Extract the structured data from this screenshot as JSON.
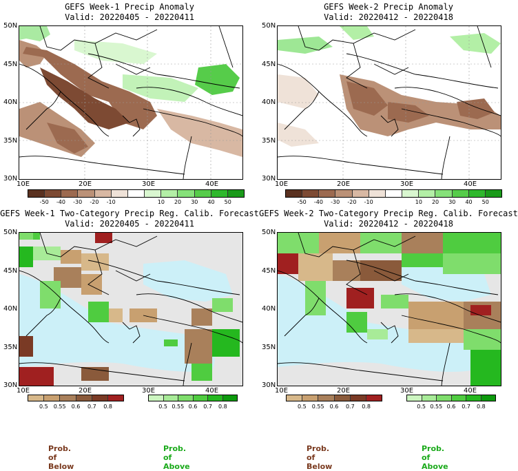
{
  "panels": {
    "p1": {
      "title": "GEFS Week-1 Precip Anomaly",
      "valid": "Valid: 20220405 - 20220411"
    },
    "p2": {
      "title": "GEFS Week-2 Precip Anomaly",
      "valid": "Valid: 20220412 - 20220418"
    },
    "p3": {
      "title": "GEFS Week-1 Two-Category Precip Reg. Calib. Forecast",
      "valid": "Valid: 20220405 - 20220411"
    },
    "p4": {
      "title": "GEFS Week-2 Two-Category Precip Reg. Calib. Forecast",
      "valid": "Valid: 20220412 - 20220418"
    }
  },
  "lat_labels": [
    "50N",
    "45N",
    "40N",
    "35N",
    "30N"
  ],
  "lon_labels": [
    "10E",
    "20E",
    "30E",
    "40E"
  ],
  "anomaly_colorbar": {
    "labels": [
      "-50",
      "-40",
      "-30",
      "-20",
      "-10",
      "10",
      "20",
      "30",
      "40",
      "50"
    ],
    "colors": [
      "#5a3120",
      "#7d4a33",
      "#9c6a50",
      "#bb9177",
      "#d8b8a3",
      "#efe2d8",
      "#ffffff",
      "#d9f7d0",
      "#b3efa6",
      "#86e17a",
      "#56cc4a",
      "#2eb82c",
      "#1a9a1a"
    ]
  },
  "prob_colorbar": {
    "below_labels": [
      "0.5",
      "0.55",
      "0.6",
      "0.7",
      "0.8"
    ],
    "above_labels": [
      "0.5",
      "0.55",
      "0.6",
      "0.7",
      "0.8"
    ],
    "below_colors": [
      "#d7b88a",
      "#c8a070",
      "#a9805b",
      "#8a5a3b",
      "#7a3a25",
      "#a02020"
    ],
    "above_colors": [
      "#ccf5c0",
      "#a8eb98",
      "#7fdd6c",
      "#4fcc40",
      "#25b81f",
      "#0d9a0d"
    ]
  },
  "prob_of_below": "Prob. of Below",
  "prob_of_above": "Prob. of Above",
  "colors": {
    "sea_prob": "#ccf0f8",
    "no_data": "#e6e6e6",
    "below_text": "#7a3a1f",
    "above_text": "#1aaa1a"
  }
}
